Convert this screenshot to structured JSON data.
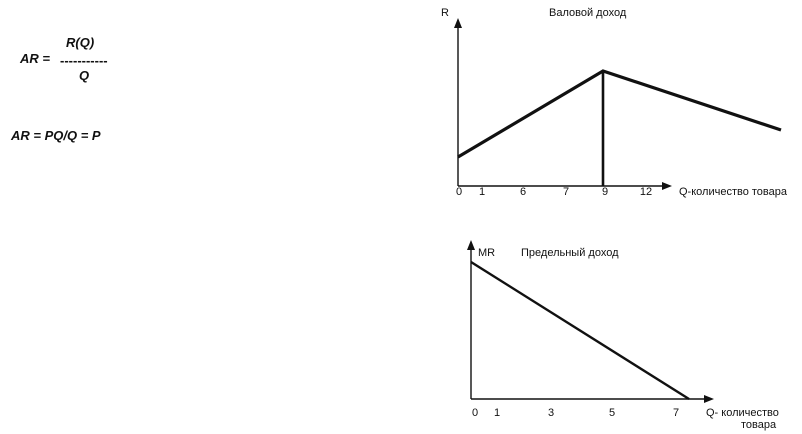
{
  "formulas": {
    "f1_lhs": "AR =",
    "f1_numerator": "R(Q)",
    "f1_bar": "-----------",
    "f1_denominator": "Q",
    "f2": "AR = PQ/Q   = P"
  },
  "chart_data": [
    {
      "type": "line",
      "title": "Валовой доход",
      "ylabel": "R",
      "xlabel": "Q-количество товара",
      "xticks": [
        "0",
        "1",
        "6",
        "7",
        "9",
        "12"
      ],
      "series": [
        {
          "x": [
            "0",
            "9",
            "end"
          ],
          "y": [
            "low",
            "peak",
            "mid"
          ],
          "shape": "rise-to-peak-then-fall"
        }
      ],
      "annotations": [
        "vertical line at Q = 9"
      ],
      "line_color": "#111111"
    },
    {
      "type": "line",
      "title": "Предельный доход",
      "ylabel": "MR",
      "xlabel": "Q- количество товара",
      "xticks": [
        "0",
        "1",
        "3",
        "5",
        "7"
      ],
      "series": [
        {
          "shape": "linear-decreasing",
          "from": "max at Q = 0",
          "to": "zero near Q = 7"
        }
      ],
      "line_color": "#111111"
    }
  ]
}
